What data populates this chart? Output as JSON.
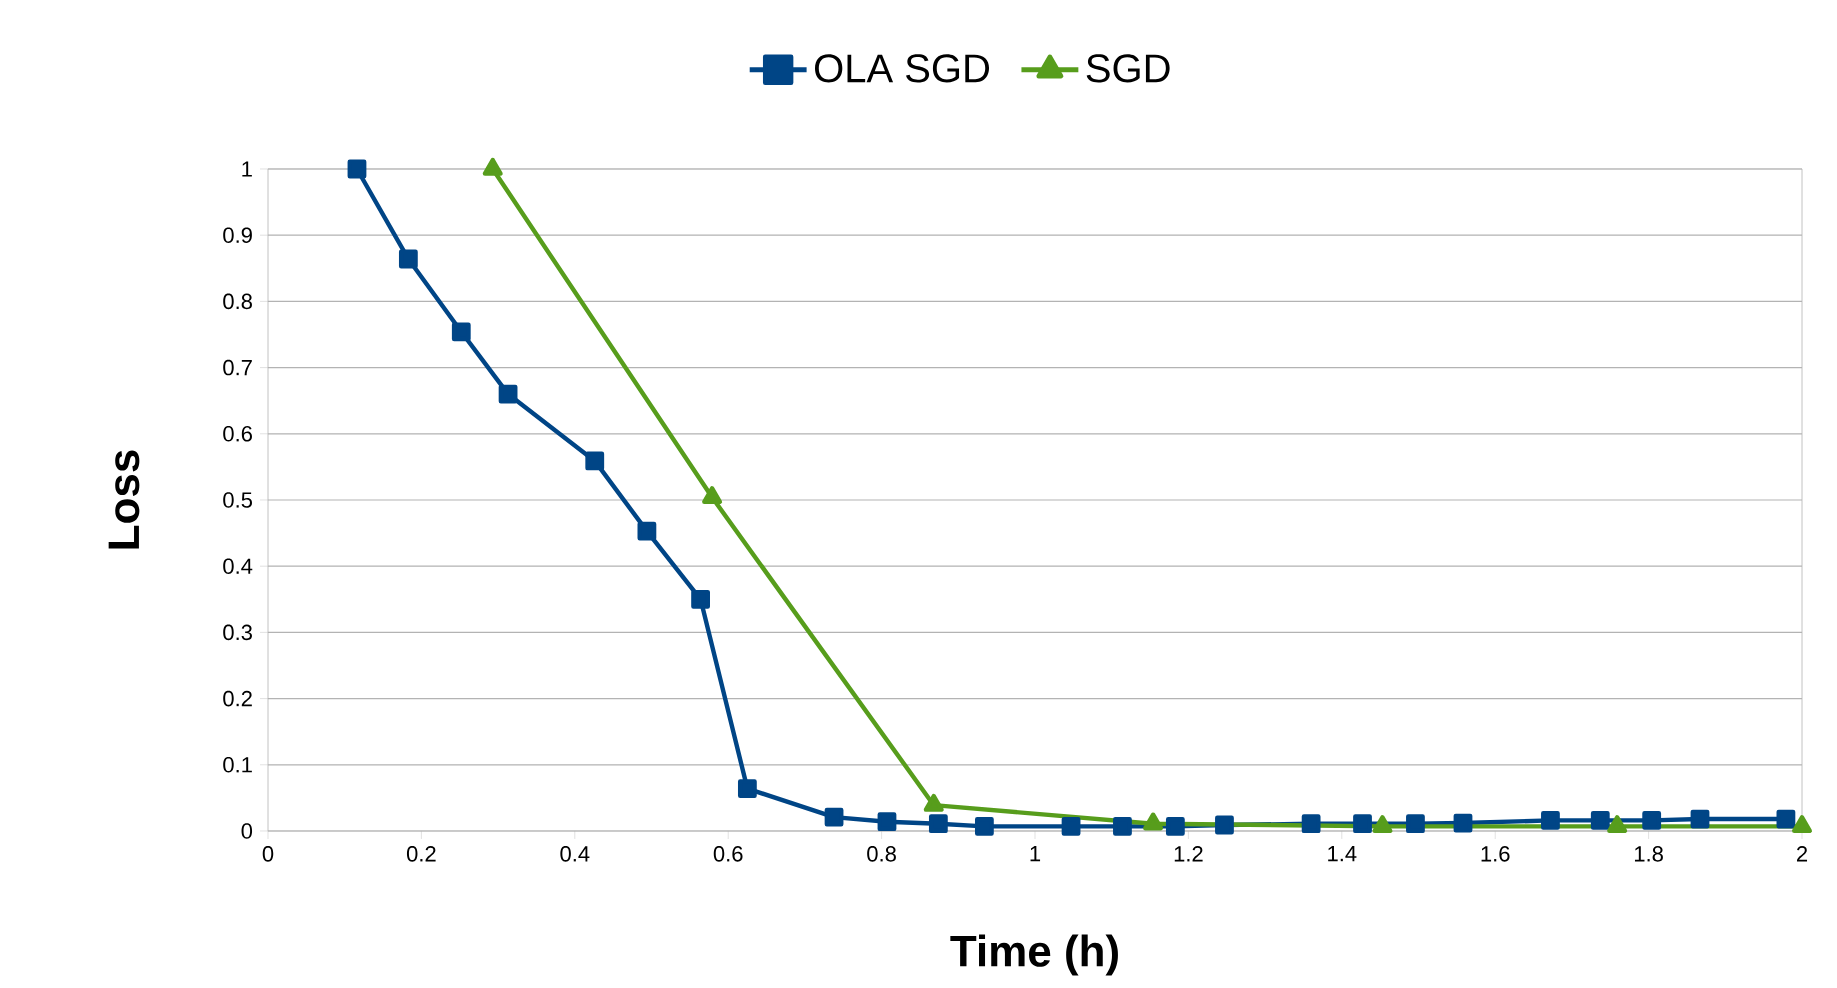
{
  "chart_data": {
    "type": "line",
    "xlabel": "Time (h)",
    "ylabel": "Loss",
    "xlim": [
      0,
      2
    ],
    "ylim": [
      0,
      1
    ],
    "xticks": [
      0,
      0.2,
      0.4,
      0.6,
      0.8,
      1,
      1.2,
      1.4,
      1.6,
      1.8,
      2
    ],
    "yticks": [
      0,
      0.1,
      0.2,
      0.3,
      0.4,
      0.5,
      0.6,
      0.7,
      0.8,
      0.9,
      1
    ],
    "grid": "y",
    "legend": "top",
    "line_style": "solid",
    "series": [
      {
        "name": "OLA SGD",
        "color": "#004586",
        "marker": "square",
        "x": [
          0.116,
          0.183,
          0.252,
          0.313,
          0.426,
          0.494,
          0.564,
          0.625,
          0.738,
          0.807,
          0.874,
          0.934,
          1.047,
          1.114,
          1.183,
          1.247,
          1.36,
          1.427,
          1.496,
          1.558,
          1.672,
          1.737,
          1.804,
          1.867,
          1.979
        ],
        "values": [
          1,
          0.864,
          0.754,
          0.66,
          0.559,
          0.453,
          0.35,
          0.064,
          0.021,
          0.014,
          0.011,
          0.007,
          0.007,
          0.007,
          0.007,
          0.009,
          0.011,
          0.011,
          0.011,
          0.012,
          0.016,
          0.016,
          0.016,
          0.018,
          0.018
        ]
      },
      {
        "name": "SGD",
        "color": "#579d1c",
        "marker": "triangle",
        "x": [
          0.293,
          0.579,
          0.868,
          1.154,
          1.453,
          1.759,
          2
        ],
        "values": [
          1,
          0.504,
          0.039,
          0.011,
          0.007,
          0.007,
          0.007
        ]
      }
    ]
  }
}
